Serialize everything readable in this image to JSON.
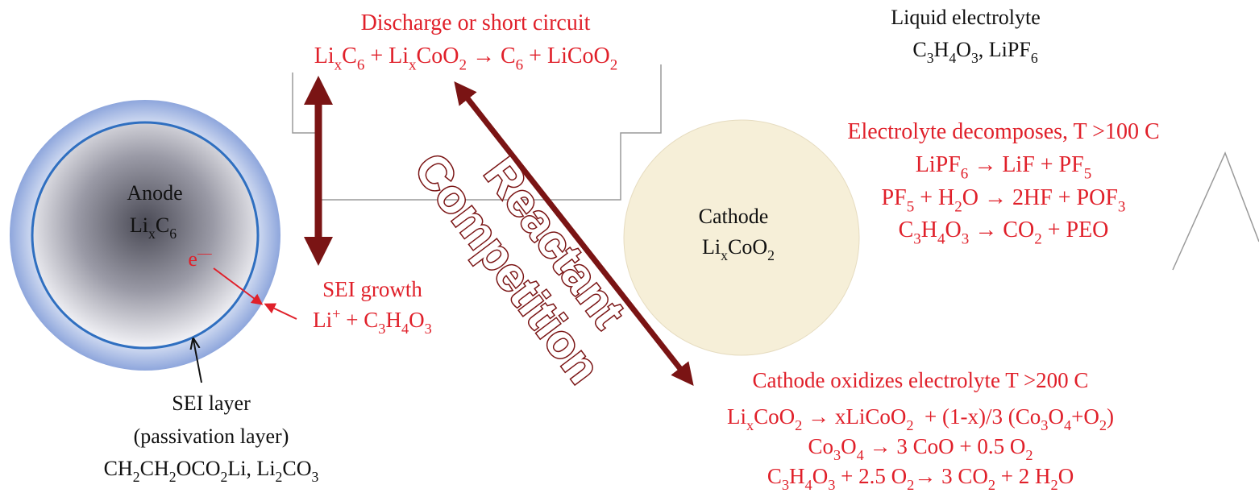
{
  "discharge": {
    "title": "Discharge or short circuit",
    "equation": [
      "Li",
      {
        "sub": "x"
      },
      "C",
      {
        "sub": "6"
      },
      " + Li",
      {
        "sub": "x"
      },
      "CoO",
      {
        "sub": "2"
      },
      " → C",
      {
        "sub": "6"
      },
      " + LiCoO",
      {
        "sub": "2"
      }
    ]
  },
  "electrolyte": {
    "title": "Liquid electrolyte",
    "formula": [
      "C",
      {
        "sub": "3"
      },
      "H",
      {
        "sub": "4"
      },
      "O",
      {
        "sub": "3"
      },
      ", LiPF",
      {
        "sub": "6"
      }
    ]
  },
  "decomposition": {
    "title": "Electrolyte decomposes, T >100 C",
    "lines": [
      [
        "LiPF",
        {
          "sub": "6"
        },
        " → LiF + PF",
        {
          "sub": "5"
        }
      ],
      [
        "PF",
        {
          "sub": "5"
        },
        " + H",
        {
          "sub": "2"
        },
        "O → 2HF + POF",
        {
          "sub": "3"
        }
      ],
      [
        "C",
        {
          "sub": "3"
        },
        "H",
        {
          "sub": "4"
        },
        "O",
        {
          "sub": "3"
        },
        " → CO",
        {
          "sub": "2"
        },
        " + PEO"
      ]
    ]
  },
  "anode": {
    "label": "Anode",
    "formula": [
      "Li",
      {
        "sub": "x"
      },
      "C",
      {
        "sub": "6"
      }
    ],
    "electron": [
      "e",
      {
        "sup": "—"
      }
    ]
  },
  "sei_growth": {
    "title": "SEI growth",
    "formula": [
      "Li",
      {
        "sup": "+"
      },
      " + C",
      {
        "sub": "3"
      },
      "H",
      {
        "sub": "4"
      },
      "O",
      {
        "sub": "3"
      }
    ]
  },
  "cathode": {
    "label": "Cathode",
    "formula": [
      "Li",
      {
        "sub": "x"
      },
      "CoO",
      {
        "sub": "2"
      }
    ]
  },
  "competition": [
    "Reactant",
    "Competition"
  ],
  "oxidation": {
    "title": "Cathode oxidizes electrolyte T >200 C",
    "lines": [
      [
        "Li",
        {
          "sub": "x"
        },
        "CoO",
        {
          "sub": "2"
        },
        " → xLiCoO",
        {
          "sub": "2"
        },
        "  + (1-x)/3 (Co",
        {
          "sub": "3"
        },
        "O",
        {
          "sub": "4"
        },
        "+O",
        {
          "sub": "2"
        },
        ")"
      ],
      [
        "Co",
        {
          "sub": "3"
        },
        "O",
        {
          "sub": "4"
        },
        " → 3 CoO + 0.5 O",
        {
          "sub": "2"
        }
      ],
      [
        "C",
        {
          "sub": "3"
        },
        "H",
        {
          "sub": "4"
        },
        "O",
        {
          "sub": "3"
        },
        " + 2.5 O",
        {
          "sub": "2"
        },
        "→ 3 CO",
        {
          "sub": "2"
        },
        " + 2 H",
        {
          "sub": "2"
        },
        "O"
      ]
    ]
  },
  "sei_layer": {
    "title": "SEI layer",
    "subtitle": "(passivation layer)",
    "formula": [
      "CH",
      {
        "sub": "2"
      },
      "CH",
      {
        "sub": "2"
      },
      "OCO",
      {
        "sub": "2"
      },
      "Li, Li",
      {
        "sub": "2"
      },
      "CO",
      {
        "sub": "3"
      }
    ]
  }
}
